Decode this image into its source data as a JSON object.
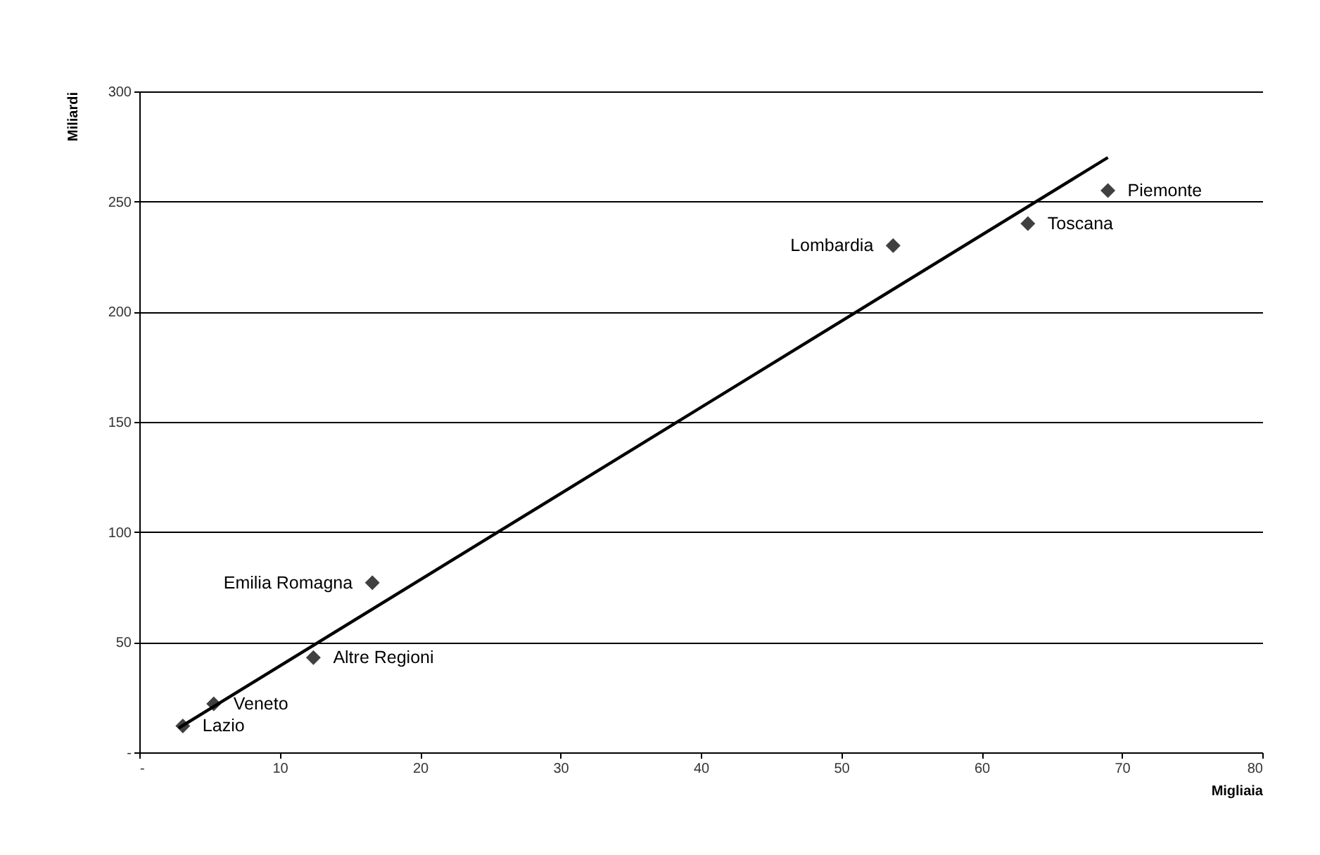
{
  "chart_data": {
    "type": "scatter",
    "xlabel": "Migliaia",
    "ylabel": "Miliardi",
    "xlim": [
      0,
      80
    ],
    "xticks": [
      {
        "value": 0,
        "label": "-"
      },
      10,
      20,
      30,
      40,
      50,
      60,
      70,
      80
    ],
    "ylim": [
      0,
      300
    ],
    "yticks": [
      {
        "value": 0,
        "label": "-"
      },
      50,
      100,
      150,
      200,
      250,
      300
    ],
    "grid": "y",
    "marker": "diamond",
    "x": [
      3.1,
      5.3,
      12.4,
      16.6,
      53.7,
      63.3,
      69.0
    ],
    "series": [
      {
        "color": "#404040",
        "values": [
          12,
          22,
          43,
          77,
          230,
          240,
          255
        ]
      },
      {
        "type": "line",
        "color": "#000000",
        "x": [
          2.8,
          69.0
        ],
        "values": [
          11,
          270
        ],
        "marker": "none"
      }
    ],
    "annotations": [
      {
        "text": "Lazio",
        "x": 3.1,
        "y": 12
      },
      {
        "text": "Veneto",
        "x": 5.3,
        "y": 22
      },
      {
        "text": "Altre Regioni",
        "x": 12.4,
        "y": 43
      },
      {
        "text": "Emilia Romagna",
        "x": 16.6,
        "y": 77
      },
      {
        "text": "Lombardia",
        "x": 53.7,
        "y": 230
      },
      {
        "text": "Toscana",
        "x": 63.3,
        "y": 240
      },
      {
        "text": "Piemonte",
        "x": 69.0,
        "y": 255
      }
    ]
  }
}
